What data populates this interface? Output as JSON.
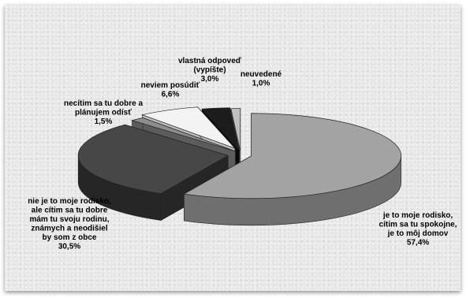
{
  "chart_data": {
    "type": "pie",
    "style": "3d-exploded",
    "title": "",
    "slices": [
      {
        "label": [
          "je to moje rodisko,",
          "cítim sa tu spokojne,",
          "je to môj domov",
          "57,4%"
        ],
        "value": 57.4,
        "color": "#a3a3a3",
        "side": "#6f6f6f"
      },
      {
        "label": [
          "nie je to moje rodisko,",
          "ale cítim sa tu dobre",
          "mám tu svoju rodinu,",
          "známych a neodišiel",
          "by som z obce",
          "30,5%"
        ],
        "value": 30.5,
        "color": "#474747",
        "side": "#262626"
      },
      {
        "label": [
          "necítim sa tu dobre a",
          "plánujem odísť",
          "1,5%"
        ],
        "value": 1.5,
        "color": "#8d8d8d",
        "side": "#5c5c5c"
      },
      {
        "label": [
          "neviem posúdiť",
          "6,6%"
        ],
        "value": 6.6,
        "color": "#f3f3f3",
        "side": "#bdbdbd"
      },
      {
        "label": [
          "vlastná odpoveď",
          "(vypíšte)",
          "3,0%"
        ],
        "value": 3.0,
        "color": "#1c1c1c",
        "side": "#090909"
      },
      {
        "label": [
          "neuvedené",
          "1,0%"
        ],
        "value": 1.0,
        "color": "#bfbfbf",
        "side": "#8a8a8a"
      }
    ]
  }
}
